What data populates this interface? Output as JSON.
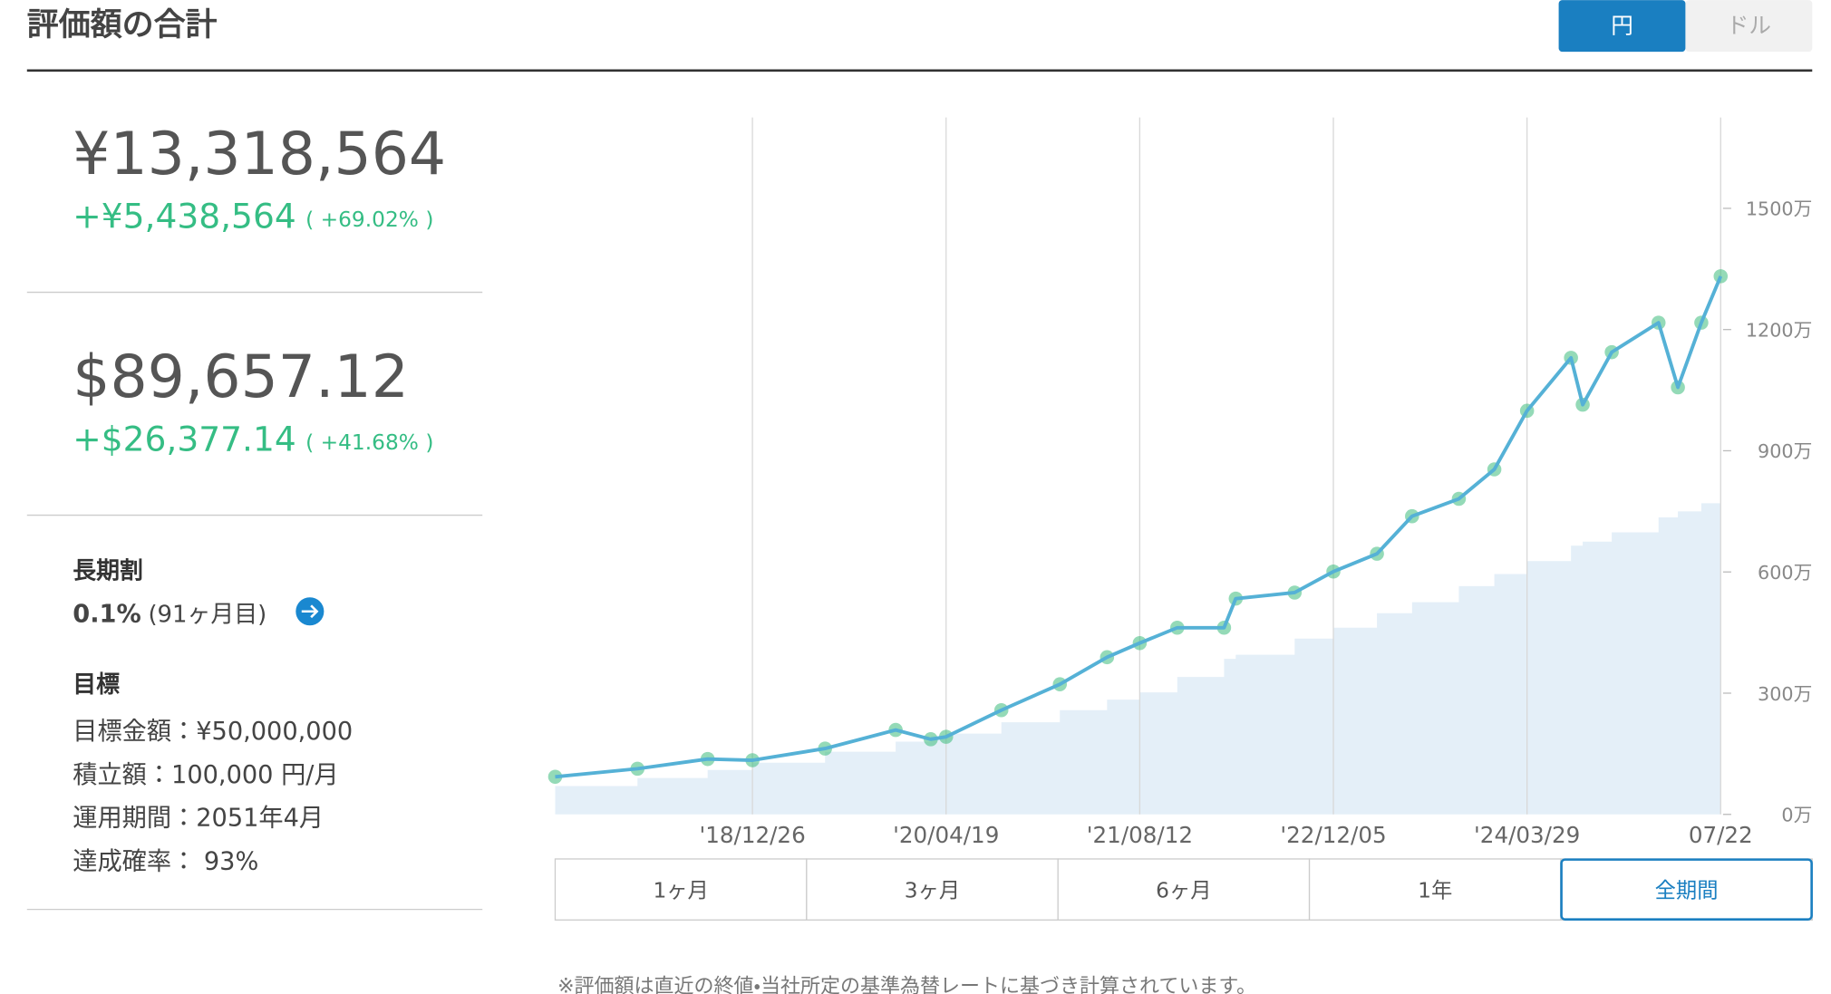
{
  "header": {
    "title": "評価額の合計",
    "currency_buttons": [
      "円",
      "ドル"
    ]
  },
  "summary": {
    "yen": {
      "total": "¥13,318,564",
      "gain": "+¥5,438,564",
      "gain_pct": "( +69.02% )"
    },
    "usd": {
      "total": "$89,657.12",
      "gain": "+$26,377.14",
      "gain_pct": "( +41.68% )"
    }
  },
  "long_term": {
    "title": "長期割",
    "rate": "0.1%",
    "months": "(91ヶ月目)"
  },
  "goal": {
    "title": "目標",
    "rows": [
      "目標金額：¥50,000,000",
      "積立額：100,000 円/月",
      "運用期間：2051年4月",
      "達成確率： 93%"
    ]
  },
  "period_buttons": [
    "1ヶ月",
    "3ヶ月",
    "6ヶ月",
    "1年",
    "全期間"
  ],
  "note": "※評価額は直近の終値・当社所定の基準為替レートに基づき計算されています。",
  "chart_data": {
    "type": "line",
    "x": [
      "2017-08-24",
      "2018-03-16",
      "2018-09-06",
      "2018-12-26",
      "2019-06-24",
      "2019-12-16",
      "2020-03-12",
      "2020-04-19",
      "2020-09-03",
      "2021-01-26",
      "2021-05-23",
      "2021-08-12",
      "2021-11-13",
      "2022-03-09",
      "2022-04-07",
      "2022-08-31",
      "2022-12-05",
      "2023-03-23",
      "2023-06-18",
      "2023-10-12",
      "2024-01-08",
      "2024-03-29",
      "2024-07-16",
      "2024-08-14",
      "2024-10-25",
      "2025-02-18",
      "2025-04-07",
      "2025-06-04",
      "2025-07-22"
    ],
    "series": [
      {
        "type": "area",
        "color": "#e4eff8",
        "values": [
          700000,
          900000,
          1100000,
          1280000,
          1550000,
          1800000,
          1930000,
          2000000,
          2280000,
          2580000,
          2840000,
          3020000,
          3400000,
          3850000,
          3950000,
          4350000,
          4620000,
          4980000,
          5250000,
          5650000,
          5950000,
          6270000,
          6650000,
          6750000,
          6980000,
          7350000,
          7500000,
          7700000,
          7880000
        ]
      },
      {
        "type": "line",
        "color": "#55b1d6",
        "marker_color": "#3dbb7c",
        "values": [
          930000,
          1130000,
          1370000,
          1340000,
          1630000,
          2090000,
          1860000,
          1920000,
          2580000,
          3220000,
          3890000,
          4240000,
          4620000,
          4620000,
          5340000,
          5490000,
          6010000,
          6450000,
          7380000,
          7810000,
          8540000,
          9990000,
          11300000,
          10140000,
          11440000,
          12170000,
          10570000,
          12170000,
          13318564
        ]
      }
    ],
    "xlim": [
      "2017-08-24",
      "2025-07-22"
    ],
    "xticks": [
      {
        "value": "2018-12-26",
        "label": "'18/12/26"
      },
      {
        "value": "2020-04-19",
        "label": "'20/04/19"
      },
      {
        "value": "2021-08-12",
        "label": "'21/08/12"
      },
      {
        "value": "2022-12-05",
        "label": "'22/12/05"
      },
      {
        "value": "2024-03-29",
        "label": "'24/03/29"
      },
      {
        "value": "2025-07-22",
        "label": "07/22"
      }
    ],
    "ylim": [
      0,
      17250000
    ],
    "yticks": [
      {
        "value": 0,
        "label": "0万"
      },
      {
        "value": 3000000,
        "label": "300万"
      },
      {
        "value": 6000000,
        "label": "600万"
      },
      {
        "value": 9000000,
        "label": "900万"
      },
      {
        "value": 12000000,
        "label": "1200万"
      },
      {
        "value": 15000000,
        "label": "1500万"
      }
    ],
    "grid": true
  }
}
